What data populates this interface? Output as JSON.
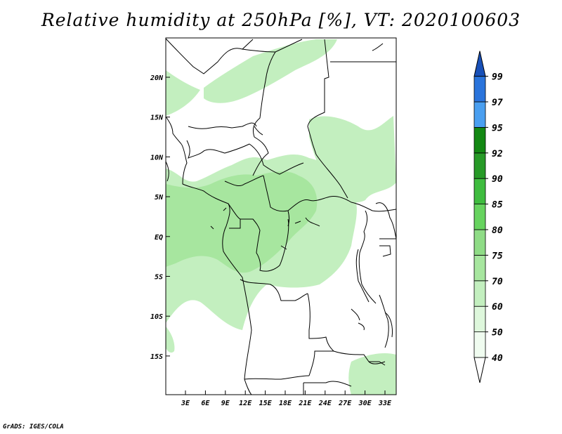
{
  "title": "Relative humidity at 250hPa [%], VT: 2020100603",
  "credit": "GrADS: IGES/COLA",
  "colors": {
    "l40": "#f0fcf0",
    "l50": "#def7dc",
    "l60": "#c3efbf",
    "l70": "#a7e69f",
    "l75": "#8fdc86",
    "l80": "#67d35f",
    "l85": "#3fbc3f",
    "l90": "#279a27",
    "l92": "#138813",
    "l95": "#4a9ff0",
    "l97": "#2a74dc",
    "l99": "#1850b8"
  },
  "map": {
    "lat_labels": [
      "20N",
      "15N",
      "10N",
      "5N",
      "EQ",
      "5S",
      "10S",
      "15S"
    ],
    "lon_labels": [
      "3E",
      "6E",
      "9E",
      "12E",
      "15E",
      "18E",
      "21E",
      "24E",
      "27E",
      "30E",
      "33E"
    ]
  },
  "colorbar": {
    "labels": [
      "40",
      "50",
      "60",
      "70",
      "75",
      "80",
      "85",
      "90",
      "92",
      "95",
      "97",
      "99"
    ],
    "colors": [
      "#f0fcf0",
      "#def7dc",
      "#c3efbf",
      "#a7e69f",
      "#8fdc86",
      "#67d35f",
      "#3fbc3f",
      "#279a27",
      "#138813",
      "#4a9ff0",
      "#2a74dc",
      "#1850b8"
    ]
  }
}
